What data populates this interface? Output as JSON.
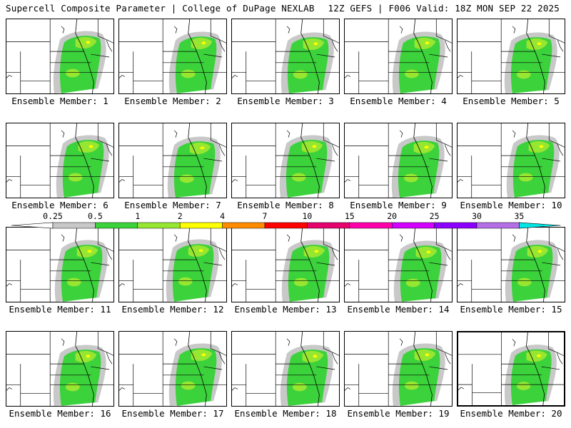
{
  "header": {
    "title": "Supercell Composite Parameter | College of DuPage NEXLAB",
    "run_info": "12Z GEFS | F006 Valid: 18Z MON SEP 22 2025"
  },
  "panels": [
    {
      "caption": "Ensemble Member: 1"
    },
    {
      "caption": "Ensemble Member: 2"
    },
    {
      "caption": "Ensemble Member: 3"
    },
    {
      "caption": "Ensemble Member: 4"
    },
    {
      "caption": "Ensemble Member: 5"
    },
    {
      "caption": "Ensemble Member: 6"
    },
    {
      "caption": "Ensemble Member: 7"
    },
    {
      "caption": "Ensemble Member: 8"
    },
    {
      "caption": "Ensemble Member: 9"
    },
    {
      "caption": "Ensemble Member: 10"
    },
    {
      "caption": "Ensemble Member: 11"
    },
    {
      "caption": "Ensemble Member: 12"
    },
    {
      "caption": "Ensemble Member: 13"
    },
    {
      "caption": "Ensemble Member: 14"
    },
    {
      "caption": "Ensemble Member: 15"
    },
    {
      "caption": "Ensemble Member: 16"
    },
    {
      "caption": "Ensemble Member: 17"
    },
    {
      "caption": "Ensemble Member: 18"
    },
    {
      "caption": "Ensemble Member: 19"
    },
    {
      "caption": "Ensemble Member: 20"
    }
  ],
  "colorbar": {
    "labels": [
      "0.25",
      "0.5",
      "1",
      "2",
      "4",
      "7",
      "10",
      "15",
      "20",
      "25",
      "30",
      "35"
    ],
    "colors": [
      "#c8c8c8",
      "#3cd23c",
      "#96e632",
      "#ffff00",
      "#ff8c00",
      "#ff0000",
      "#e6006e",
      "#ff00aa",
      "#d200ff",
      "#8c00ff",
      "#b46ee6",
      "#00e6e6"
    ]
  },
  "field_colors": {
    "low": "#c8c8c8",
    "mid": "#3cd23c",
    "high": "#96e632",
    "peak": "#ffff00"
  }
}
